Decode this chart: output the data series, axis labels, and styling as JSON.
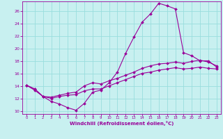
{
  "xlabel": "Windchill (Refroidissement éolien,°C)",
  "background_color": "#c8f0f0",
  "grid_color": "#99dddd",
  "line_color": "#990099",
  "hours": [
    0,
    1,
    2,
    3,
    4,
    5,
    6,
    7,
    8,
    9,
    10,
    11,
    12,
    13,
    14,
    15,
    16,
    17,
    18,
    19,
    20,
    21,
    22,
    23
  ],
  "temp_line": [
    14.1,
    13.3,
    12.3,
    11.5,
    11.1,
    10.5,
    10.1,
    11.2,
    13.0,
    13.3,
    14.5,
    16.2,
    19.2,
    21.8,
    24.2,
    25.5,
    27.2,
    26.8,
    26.3,
    19.3,
    18.8,
    18.0,
    18.0,
    17.0
  ],
  "line2": [
    14.1,
    13.5,
    12.3,
    12.2,
    12.5,
    12.8,
    13.0,
    14.0,
    14.5,
    14.3,
    14.8,
    15.2,
    15.7,
    16.2,
    16.8,
    17.2,
    17.5,
    17.6,
    17.8,
    17.6,
    17.9,
    18.1,
    17.8,
    17.2
  ],
  "line3": [
    14.1,
    13.5,
    12.3,
    12.0,
    12.3,
    12.5,
    12.6,
    13.2,
    13.5,
    13.5,
    14.0,
    14.5,
    15.0,
    15.5,
    16.0,
    16.2,
    16.5,
    16.7,
    16.9,
    16.7,
    16.8,
    17.0,
    16.8,
    16.7
  ],
  "ylim": [
    9.5,
    27.5
  ],
  "xlim": [
    -0.5,
    23.5
  ],
  "yticks": [
    10,
    12,
    14,
    16,
    18,
    20,
    22,
    24,
    26
  ],
  "xticks": [
    0,
    1,
    2,
    3,
    4,
    5,
    6,
    7,
    8,
    9,
    10,
    11,
    12,
    13,
    14,
    15,
    16,
    17,
    18,
    19,
    20,
    21,
    22,
    23
  ]
}
